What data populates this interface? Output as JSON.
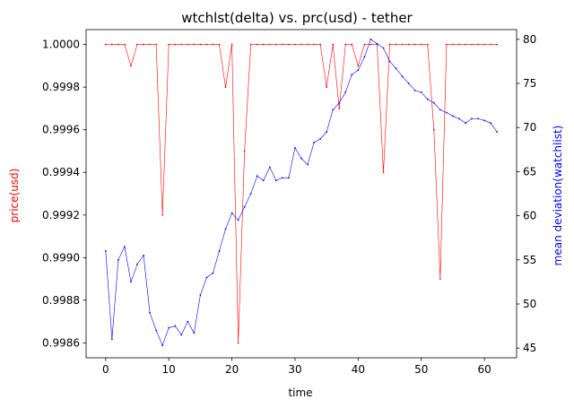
{
  "chart_data": {
    "type": "line",
    "title": "wtchlst(delta) vs. prc(usd) - tether",
    "xlabel": "time",
    "ylabel_left": "price(usd)",
    "ylabel_right": "mean deviation(watchlist)",
    "xlim": [
      -3.1,
      65.1
    ],
    "ylim_left": [
      0.99853,
      1.00007
    ],
    "ylim_right": [
      43.9,
      81.1
    ],
    "x_ticks": [
      0,
      10,
      20,
      30,
      40,
      50,
      60
    ],
    "y_ticks_left": [
      "0.9986",
      "0.9988",
      "0.9990",
      "0.9992",
      "0.9994",
      "0.9996",
      "0.9998",
      "1.0000"
    ],
    "y_ticks_right": [
      45,
      50,
      55,
      60,
      65,
      70,
      75,
      80
    ],
    "colors": {
      "price": "#ff0000",
      "deviation": "#0000ff",
      "axis": "#000000"
    },
    "series": [
      {
        "name": "price(usd)",
        "axis": "left",
        "values": [
          1.0,
          1.0,
          1.0,
          1.0,
          0.9999,
          1.0,
          1.0,
          1.0,
          1.0,
          0.9992,
          1.0,
          1.0,
          1.0,
          1.0,
          1.0,
          1.0,
          1.0,
          1.0,
          1.0,
          0.9998,
          1.0,
          0.9986,
          0.9995,
          1.0,
          1.0,
          1.0,
          1.0,
          1.0,
          1.0,
          1.0,
          1.0,
          1.0,
          1.0,
          1.0,
          1.0,
          0.9998,
          1.0,
          0.9997,
          1.0,
          1.0,
          0.9999,
          1.0,
          1.0,
          1.0,
          0.9994,
          1.0,
          1.0,
          1.0,
          1.0,
          1.0,
          1.0,
          1.0,
          0.9996,
          0.9989,
          1.0,
          1.0,
          1.0,
          1.0,
          1.0,
          1.0,
          1.0,
          1.0,
          1.0
        ]
      },
      {
        "name": "mean deviation(watchlist)",
        "axis": "right",
        "values": [
          56.0,
          46.0,
          55.0,
          56.5,
          52.5,
          54.5,
          55.5,
          49.0,
          47.0,
          45.3,
          47.3,
          47.5,
          46.5,
          48.0,
          46.7,
          51.0,
          53.0,
          53.5,
          56.0,
          58.5,
          60.3,
          59.5,
          61.0,
          62.5,
          64.5,
          64.0,
          65.5,
          64.0,
          64.3,
          64.3,
          67.7,
          66.5,
          65.8,
          68.3,
          68.7,
          69.5,
          72.0,
          72.8,
          74.0,
          76.0,
          76.5,
          78.0,
          80.0,
          79.5,
          79.0,
          77.5,
          76.7,
          75.8,
          75.0,
          74.2,
          74.0,
          73.2,
          72.8,
          72.0,
          71.7,
          71.3,
          71.0,
          70.5,
          71.0,
          71.0,
          70.8,
          70.5,
          69.5
        ]
      }
    ]
  }
}
